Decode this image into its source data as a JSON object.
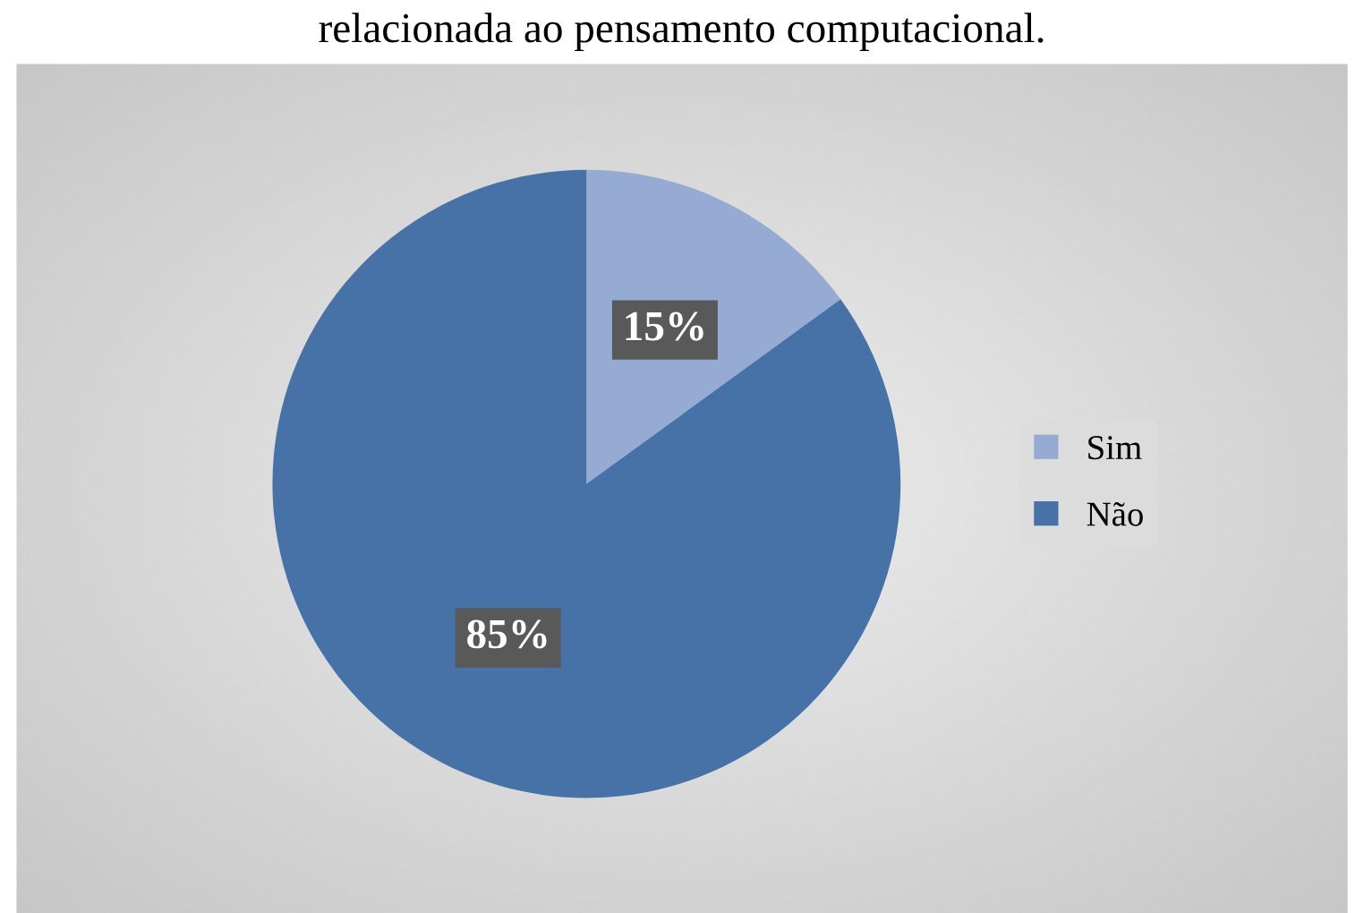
{
  "chart_data": {
    "type": "pie",
    "title": "relacionada ao pensamento computacional.",
    "categories": [
      "Sim",
      "Não"
    ],
    "values": [
      15,
      85
    ],
    "colors": [
      "#95abd3",
      "#4672a8"
    ],
    "value_labels": [
      "15%",
      "85%"
    ],
    "legend": "right"
  }
}
